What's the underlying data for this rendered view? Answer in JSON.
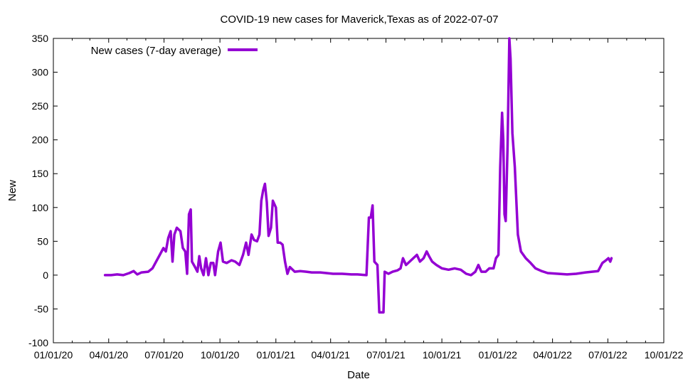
{
  "chart_data": {
    "type": "line",
    "title": "COVID-19 new cases for Maverick,Texas as of 2022-07-07",
    "xlabel": "Date",
    "ylabel": "New",
    "xlim": [
      "2020-01-01",
      "2022-10-01"
    ],
    "ylim": [
      -100,
      350
    ],
    "x_tick_labels": [
      "01/01/20",
      "04/01/20",
      "07/01/20",
      "10/01/20",
      "01/01/21",
      "04/01/21",
      "07/01/21",
      "10/01/21",
      "01/01/22",
      "04/01/22",
      "07/01/22",
      "10/01/22"
    ],
    "x_ticks": [
      "2020-01-01",
      "2020-04-01",
      "2020-07-01",
      "2020-10-01",
      "2021-01-01",
      "2021-04-01",
      "2021-07-01",
      "2021-10-01",
      "2022-01-01",
      "2022-04-01",
      "2022-07-01",
      "2022-10-01"
    ],
    "y_ticks": [
      -100,
      -50,
      0,
      50,
      100,
      150,
      200,
      250,
      300,
      350
    ],
    "grid": false,
    "legend": {
      "position": "top-left"
    },
    "series": [
      {
        "name": "New cases (7-day average)",
        "color": "#9400d3",
        "points": [
          [
            "2020-03-26",
            0
          ],
          [
            "2020-04-05",
            0
          ],
          [
            "2020-04-15",
            1
          ],
          [
            "2020-04-25",
            0
          ],
          [
            "2020-05-05",
            3
          ],
          [
            "2020-05-12",
            6
          ],
          [
            "2020-05-18",
            1
          ],
          [
            "2020-05-25",
            4
          ],
          [
            "2020-06-05",
            5
          ],
          [
            "2020-06-12",
            10
          ],
          [
            "2020-06-18",
            20
          ],
          [
            "2020-06-24",
            30
          ],
          [
            "2020-06-30",
            40
          ],
          [
            "2020-07-04",
            35
          ],
          [
            "2020-07-08",
            55
          ],
          [
            "2020-07-12",
            65
          ],
          [
            "2020-07-15",
            20
          ],
          [
            "2020-07-18",
            60
          ],
          [
            "2020-07-22",
            70
          ],
          [
            "2020-07-28",
            65
          ],
          [
            "2020-08-01",
            40
          ],
          [
            "2020-08-05",
            35
          ],
          [
            "2020-08-08",
            2
          ],
          [
            "2020-08-11",
            90
          ],
          [
            "2020-08-14",
            97
          ],
          [
            "2020-08-16",
            20
          ],
          [
            "2020-08-21",
            12
          ],
          [
            "2020-08-25",
            5
          ],
          [
            "2020-08-28",
            28
          ],
          [
            "2020-08-31",
            10
          ],
          [
            "2020-09-04",
            0
          ],
          [
            "2020-09-08",
            25
          ],
          [
            "2020-09-12",
            0
          ],
          [
            "2020-09-16",
            18
          ],
          [
            "2020-09-20",
            18
          ],
          [
            "2020-09-23",
            0
          ],
          [
            "2020-09-28",
            35
          ],
          [
            "2020-10-02",
            48
          ],
          [
            "2020-10-06",
            20
          ],
          [
            "2020-10-12",
            18
          ],
          [
            "2020-10-20",
            22
          ],
          [
            "2020-10-26",
            20
          ],
          [
            "2020-11-02",
            15
          ],
          [
            "2020-11-08",
            30
          ],
          [
            "2020-11-13",
            48
          ],
          [
            "2020-11-17",
            30
          ],
          [
            "2020-11-22",
            60
          ],
          [
            "2020-11-26",
            52
          ],
          [
            "2020-12-01",
            50
          ],
          [
            "2020-12-05",
            60
          ],
          [
            "2020-12-08",
            110
          ],
          [
            "2020-12-11",
            125
          ],
          [
            "2020-12-14",
            135
          ],
          [
            "2020-12-17",
            108
          ],
          [
            "2020-12-20",
            58
          ],
          [
            "2020-12-24",
            70
          ],
          [
            "2020-12-27",
            110
          ],
          [
            "2021-01-01",
            100
          ],
          [
            "2021-01-04",
            48
          ],
          [
            "2021-01-08",
            48
          ],
          [
            "2021-01-12",
            45
          ],
          [
            "2021-01-16",
            20
          ],
          [
            "2021-01-20",
            2
          ],
          [
            "2021-01-24",
            12
          ],
          [
            "2021-02-01",
            5
          ],
          [
            "2021-02-10",
            6
          ],
          [
            "2021-02-20",
            5
          ],
          [
            "2021-03-01",
            4
          ],
          [
            "2021-03-15",
            4
          ],
          [
            "2021-03-25",
            3
          ],
          [
            "2021-04-05",
            2
          ],
          [
            "2021-04-20",
            2
          ],
          [
            "2021-05-05",
            1
          ],
          [
            "2021-05-15",
            1
          ],
          [
            "2021-05-30",
            0
          ],
          [
            "2021-06-03",
            85
          ],
          [
            "2021-06-06",
            85
          ],
          [
            "2021-06-09",
            103
          ],
          [
            "2021-06-12",
            20
          ],
          [
            "2021-06-17",
            15
          ],
          [
            "2021-06-20",
            -55
          ],
          [
            "2021-06-27",
            -55
          ],
          [
            "2021-06-29",
            5
          ],
          [
            "2021-07-05",
            2
          ],
          [
            "2021-07-12",
            5
          ],
          [
            "2021-07-20",
            7
          ],
          [
            "2021-07-25",
            10
          ],
          [
            "2021-07-29",
            25
          ],
          [
            "2021-08-03",
            15
          ],
          [
            "2021-08-09",
            20
          ],
          [
            "2021-08-15",
            25
          ],
          [
            "2021-08-21",
            30
          ],
          [
            "2021-08-26",
            20
          ],
          [
            "2021-09-01",
            25
          ],
          [
            "2021-09-06",
            35
          ],
          [
            "2021-09-10",
            28
          ],
          [
            "2021-09-15",
            20
          ],
          [
            "2021-09-22",
            15
          ],
          [
            "2021-10-01",
            10
          ],
          [
            "2021-10-12",
            8
          ],
          [
            "2021-10-22",
            10
          ],
          [
            "2021-11-01",
            8
          ],
          [
            "2021-11-10",
            2
          ],
          [
            "2021-11-18",
            0
          ],
          [
            "2021-11-25",
            5
          ],
          [
            "2021-11-30",
            15
          ],
          [
            "2021-12-05",
            5
          ],
          [
            "2021-12-12",
            5
          ],
          [
            "2021-12-18",
            10
          ],
          [
            "2021-12-25",
            10
          ],
          [
            "2021-12-29",
            25
          ],
          [
            "2022-01-02",
            30
          ],
          [
            "2022-01-05",
            160
          ],
          [
            "2022-01-08",
            240
          ],
          [
            "2022-01-10",
            200
          ],
          [
            "2022-01-12",
            90
          ],
          [
            "2022-01-14",
            80
          ],
          [
            "2022-01-17",
            190
          ],
          [
            "2022-01-20",
            350
          ],
          [
            "2022-01-22",
            320
          ],
          [
            "2022-01-25",
            210
          ],
          [
            "2022-01-29",
            160
          ],
          [
            "2022-02-03",
            60
          ],
          [
            "2022-02-08",
            35
          ],
          [
            "2022-02-16",
            25
          ],
          [
            "2022-02-24",
            18
          ],
          [
            "2022-03-04",
            10
          ],
          [
            "2022-03-14",
            6
          ],
          [
            "2022-03-24",
            3
          ],
          [
            "2022-04-10",
            2
          ],
          [
            "2022-04-25",
            1
          ],
          [
            "2022-05-10",
            2
          ],
          [
            "2022-05-25",
            4
          ],
          [
            "2022-06-05",
            5
          ],
          [
            "2022-06-15",
            6
          ],
          [
            "2022-06-22",
            18
          ],
          [
            "2022-06-28",
            22
          ],
          [
            "2022-07-02",
            25
          ],
          [
            "2022-07-05",
            20
          ],
          [
            "2022-07-07",
            25
          ]
        ]
      }
    ]
  }
}
